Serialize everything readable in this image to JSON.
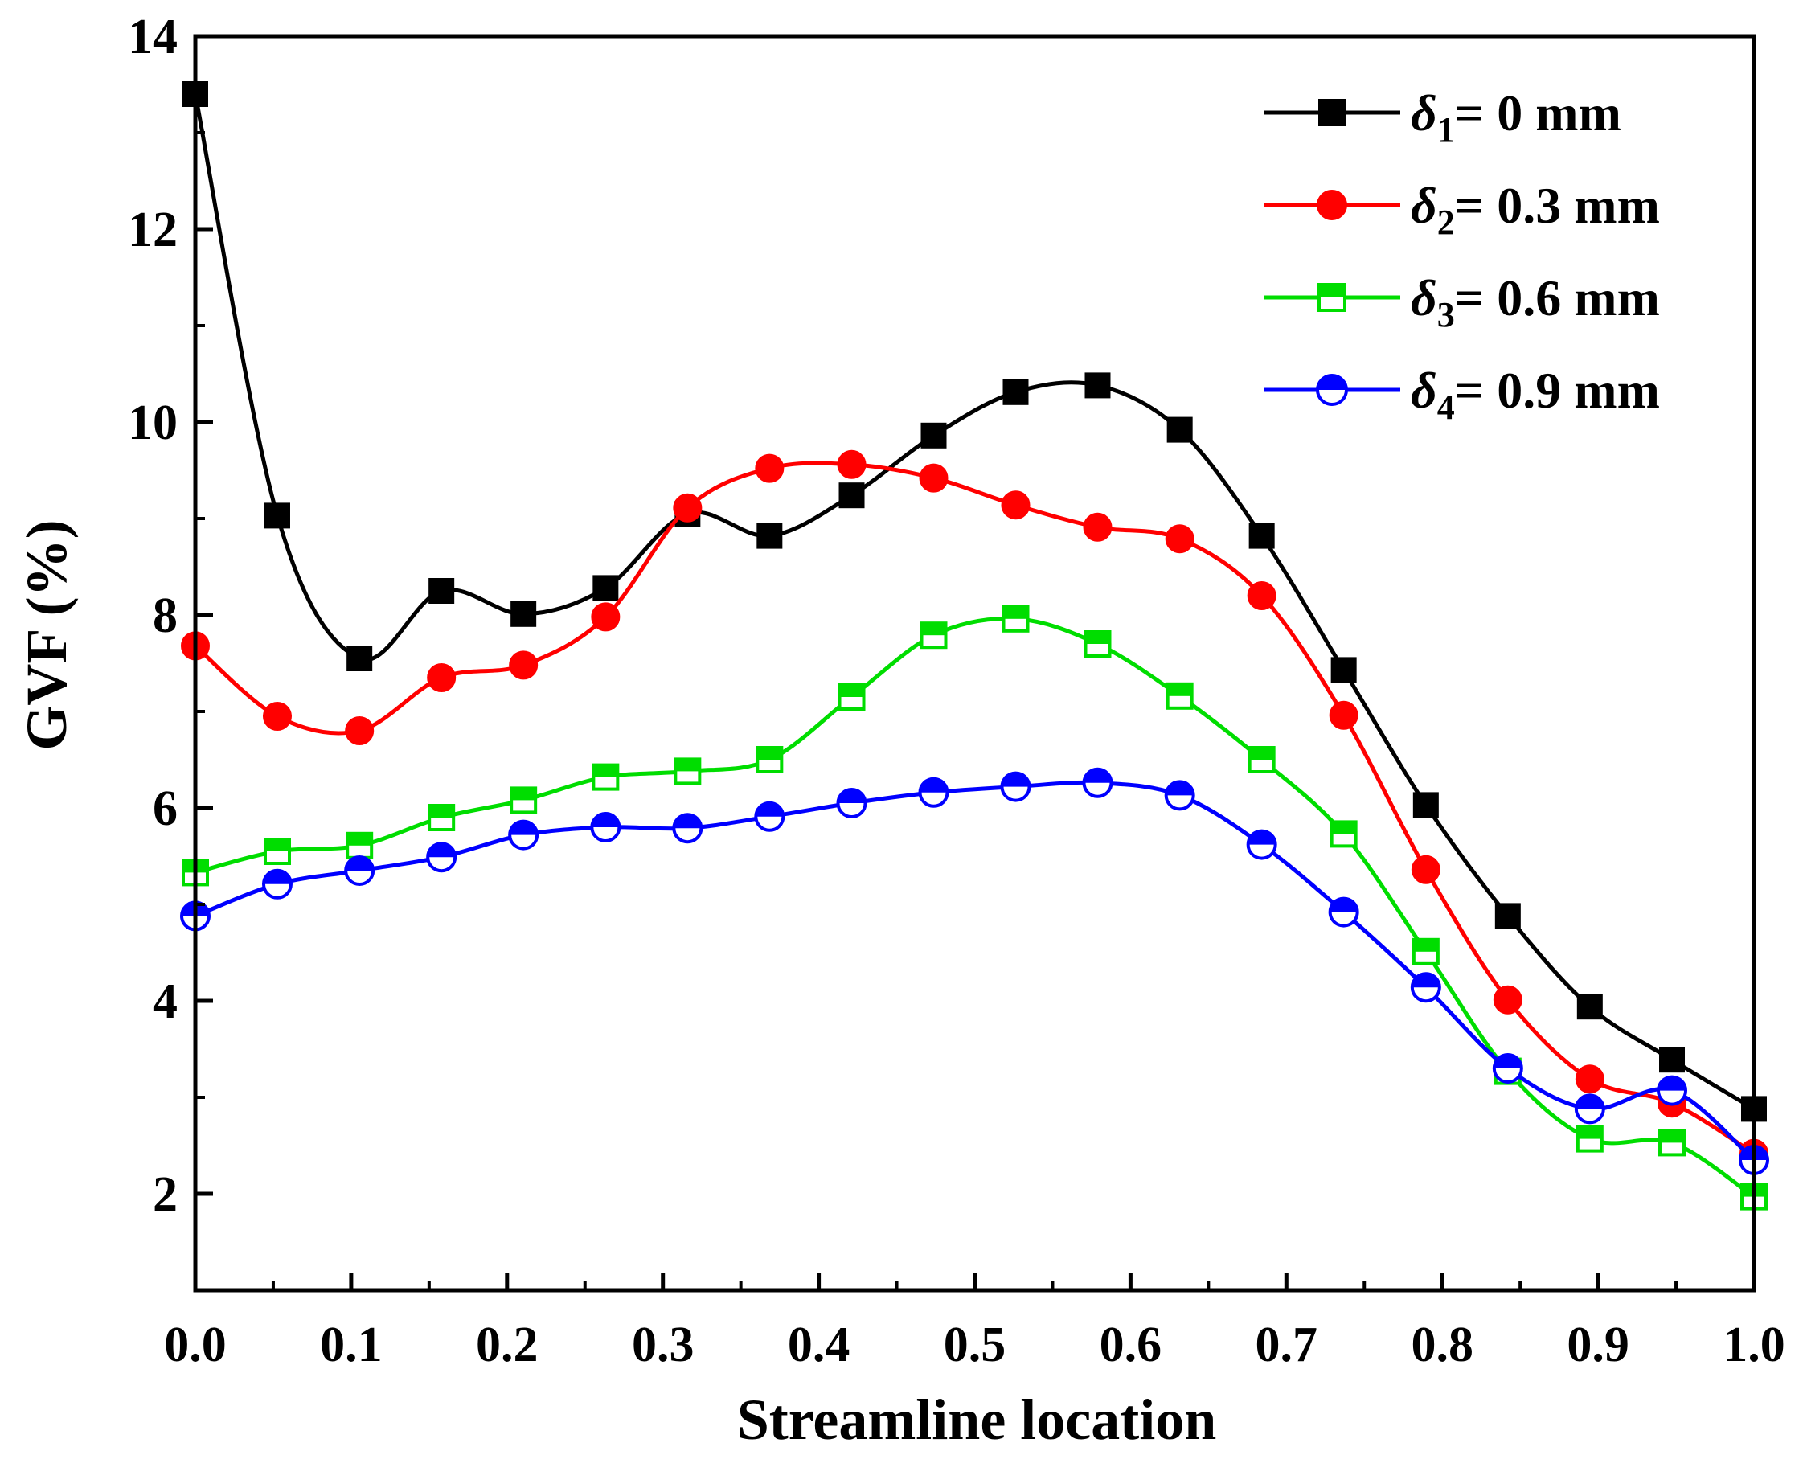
{
  "chart_data": {
    "type": "line",
    "title": "",
    "xlabel": "Streamline location",
    "ylabel": "GVF (%)",
    "xlim": [
      0,
      1
    ],
    "ylim": [
      1.0,
      14
    ],
    "x_ticks": [
      "0.0",
      "0.1",
      "0.2",
      "0.3",
      "0.4",
      "0.5",
      "0.6",
      "0.7",
      "0.8",
      "0.9",
      "1.0"
    ],
    "y_ticks": [
      "2",
      "4",
      "6",
      "8",
      "10",
      "12",
      "14"
    ],
    "grid": false,
    "legend_position": "top-right",
    "x": [
      0,
      0.0526,
      0.1053,
      0.1579,
      0.2105,
      0.2632,
      0.3158,
      0.3684,
      0.4211,
      0.4737,
      0.5263,
      0.5789,
      0.6316,
      0.6842,
      0.7368,
      0.7895,
      0.8421,
      0.8947,
      0.9474,
      1.0
    ],
    "series": [
      {
        "name": "δ1= 0 mm",
        "legend_symbol": "δ",
        "legend_sub": "1",
        "legend_rest": "= 0 mm",
        "color": "#000000",
        "marker": "square-filled",
        "values": [
          13.4,
          9.03,
          7.55,
          8.25,
          8.01,
          8.28,
          9.05,
          8.82,
          9.24,
          9.86,
          10.31,
          10.38,
          9.92,
          8.82,
          7.43,
          6.03,
          4.88,
          3.94,
          3.39,
          2.88
        ]
      },
      {
        "name": "δ2= 0.3 mm",
        "legend_symbol": "δ",
        "legend_sub": "2",
        "legend_rest": "= 0.3 mm",
        "color": "#ff0000",
        "marker": "circle-filled",
        "values": [
          7.68,
          6.95,
          6.8,
          7.35,
          7.48,
          7.98,
          9.11,
          9.52,
          9.56,
          9.42,
          9.14,
          8.91,
          8.79,
          8.2,
          6.96,
          5.36,
          4.01,
          3.19,
          2.94,
          2.42
        ]
      },
      {
        "name": "δ3= 0.6 mm",
        "legend_symbol": "δ",
        "legend_sub": "3",
        "legend_rest": "= 0.6 mm",
        "color": "#00dd00",
        "marker": "square-half",
        "values": [
          5.33,
          5.55,
          5.61,
          5.9,
          6.08,
          6.32,
          6.38,
          6.5,
          7.15,
          7.79,
          7.96,
          7.7,
          7.16,
          6.5,
          5.73,
          4.51,
          3.27,
          2.57,
          2.53,
          1.97
        ]
      },
      {
        "name": "δ4= 0.9 mm",
        "legend_symbol": "δ",
        "legend_sub": "4",
        "legend_rest": "= 0.9 mm",
        "color": "#0000ff",
        "marker": "circle-half",
        "values": [
          4.88,
          5.21,
          5.35,
          5.49,
          5.72,
          5.8,
          5.79,
          5.91,
          6.05,
          6.16,
          6.22,
          6.26,
          6.13,
          5.62,
          4.92,
          4.14,
          3.3,
          2.88,
          3.07,
          2.35
        ]
      }
    ]
  }
}
